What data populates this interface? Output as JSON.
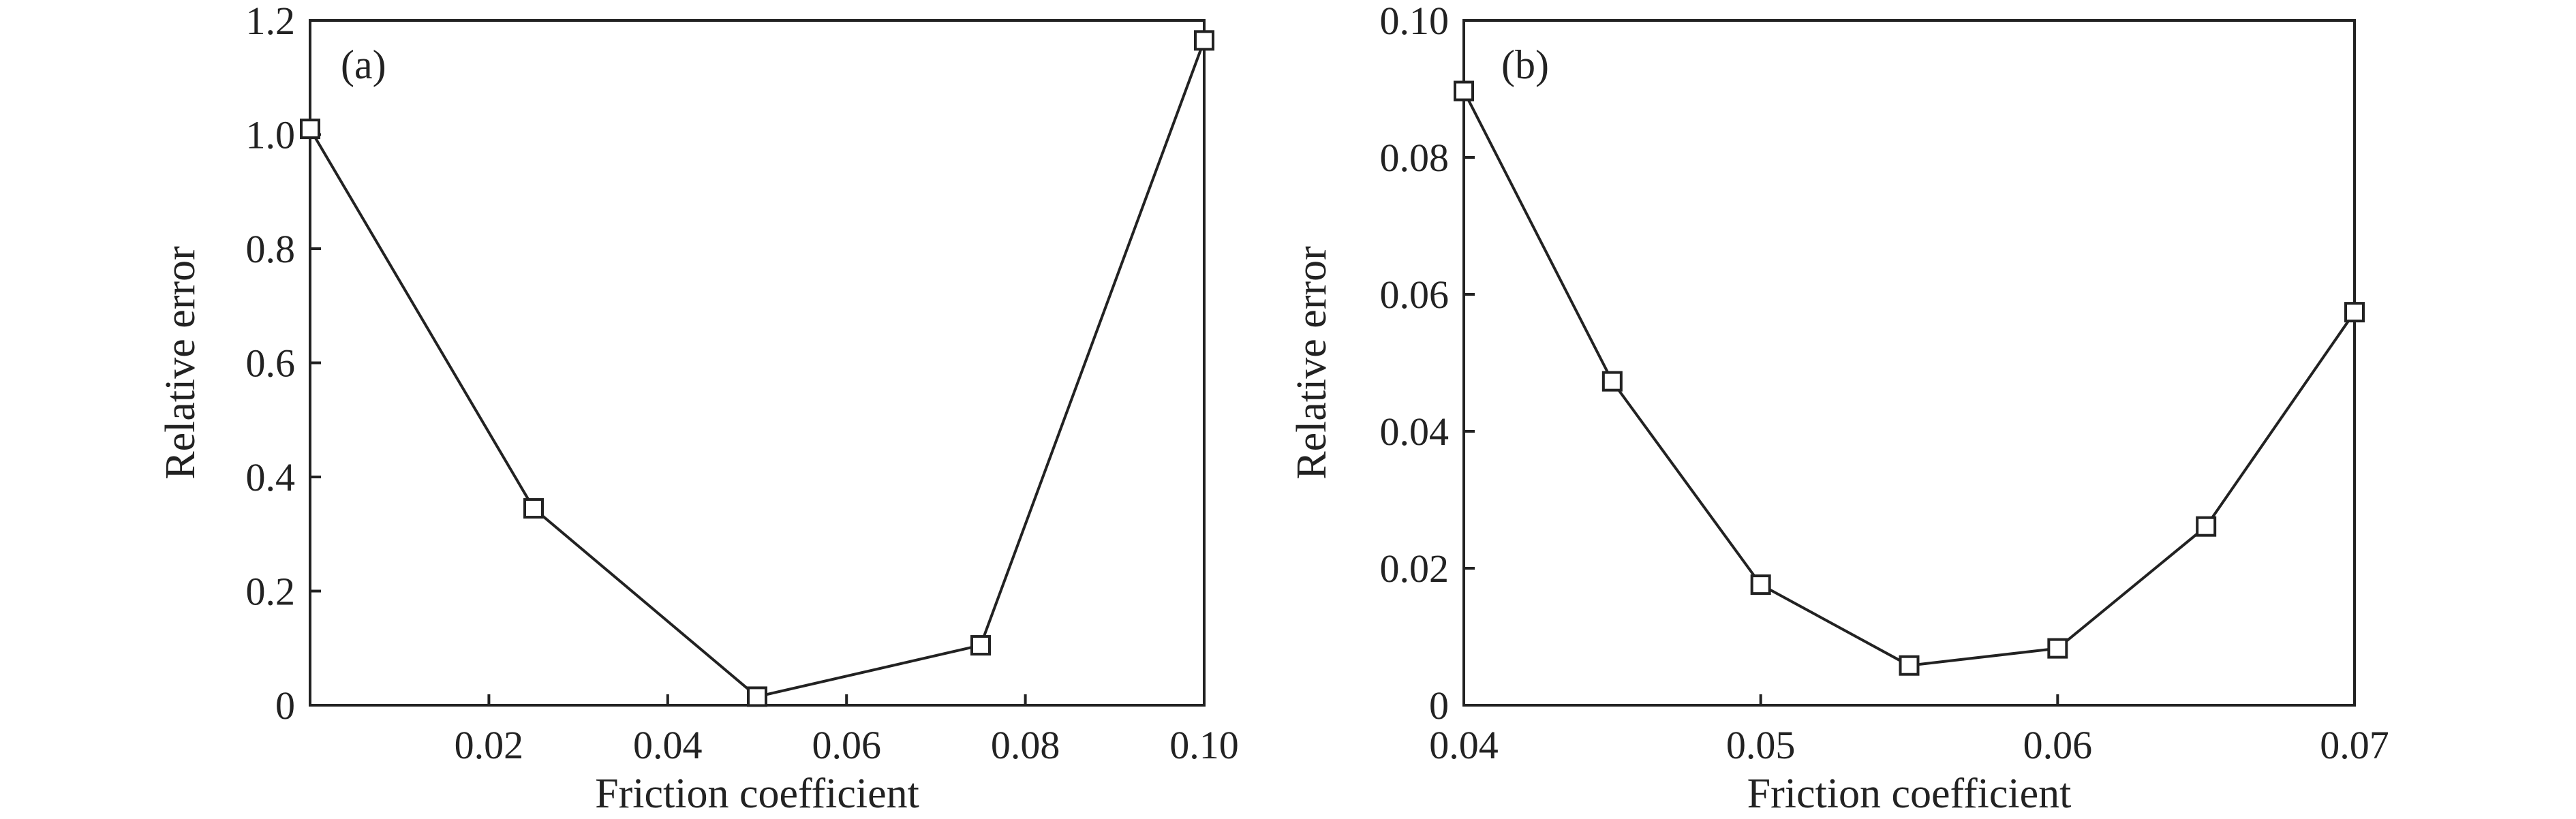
{
  "chart_data": [
    {
      "type": "line",
      "panel_label": "(a)",
      "title": "",
      "xlabel": "Friction coefficient",
      "ylabel": "Relative error",
      "xlim": [
        0,
        0.1
      ],
      "ylim": [
        0,
        1.2
      ],
      "xticks": [
        0.02,
        0.04,
        0.06,
        0.08,
        0.1
      ],
      "xtick_labels": [
        "0.02",
        "0.04",
        "0.06",
        "0.08",
        "0.10"
      ],
      "yticks": [
        0,
        0.2,
        0.4,
        0.6,
        0.8,
        1.0,
        1.2
      ],
      "ytick_labels": [
        "0",
        "0.2",
        "0.4",
        "0.6",
        "0.8",
        "1.0",
        "1.2"
      ],
      "grid": false,
      "marker": "open-square",
      "series": [
        {
          "x": [
            0,
            0.025,
            0.05,
            0.075,
            0.1
          ],
          "y": [
            1.01,
            0.345,
            0.015,
            0.105,
            1.165
          ]
        }
      ]
    },
    {
      "type": "line",
      "panel_label": "(b)",
      "title": "",
      "xlabel": "Friction coefficient",
      "ylabel": "Relative error",
      "xlim": [
        0.04,
        0.07
      ],
      "ylim": [
        0,
        0.1
      ],
      "xticks": [
        0.04,
        0.05,
        0.06,
        0.07
      ],
      "xtick_labels": [
        "0.04",
        "0.05",
        "0.06",
        "0.07"
      ],
      "yticks": [
        0,
        0.02,
        0.04,
        0.06,
        0.08,
        0.1
      ],
      "ytick_labels": [
        "0",
        "0.02",
        "0.04",
        "0.06",
        "0.08",
        "0.10"
      ],
      "grid": false,
      "marker": "open-square",
      "series": [
        {
          "x": [
            0.04,
            0.045,
            0.05,
            0.055,
            0.06,
            0.065,
            0.07
          ],
          "y": [
            0.0897,
            0.0473,
            0.0176,
            0.0058,
            0.0083,
            0.0261,
            0.0574
          ]
        }
      ]
    }
  ]
}
